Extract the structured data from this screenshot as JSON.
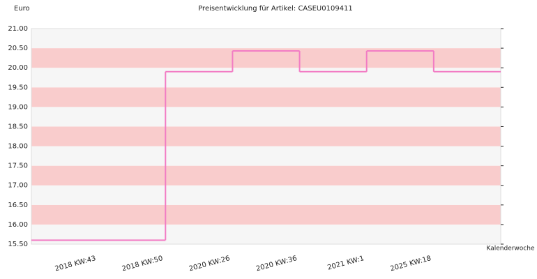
{
  "chart_data": {
    "type": "step",
    "title": "Preisentwicklung für Artikel: CASEU0109411",
    "y_label": "Euro",
    "x_label": "Kalenderwoche",
    "categories": [
      "2018 KW:43",
      "2018 KW:50",
      "2020 KW:26",
      "2020 KW:36",
      "2021 KW:1",
      "2025 KW:18"
    ],
    "values": [
      15.6,
      19.9,
      20.43,
      19.9,
      20.43,
      19.9
    ],
    "color": "#f27cc4",
    "band_colors": [
      "#f6f6f6",
      "#f9cccc"
    ],
    "ylim": [
      15.5,
      21
    ],
    "yticks": [
      {
        "value": 15.5,
        "label": "15.50"
      },
      {
        "value": 16,
        "label": "16.00"
      },
      {
        "value": 16.5,
        "label": "16.50"
      },
      {
        "value": 17,
        "label": "17.00"
      },
      {
        "value": 17.5,
        "label": "17.50"
      },
      {
        "value": 18,
        "label": "18.00"
      },
      {
        "value": 18.5,
        "label": "18.50"
      },
      {
        "value": 19,
        "label": "19.00"
      },
      {
        "value": 19.5,
        "label": "19.50"
      },
      {
        "value": 20,
        "label": "20.00"
      },
      {
        "value": 20.5,
        "label": "20.50"
      },
      {
        "value": 21,
        "label": "21.00"
      }
    ]
  }
}
